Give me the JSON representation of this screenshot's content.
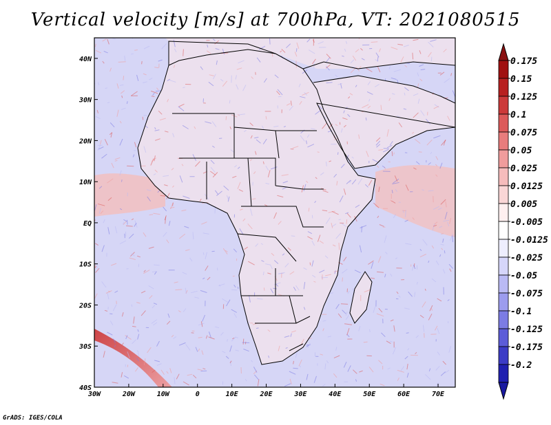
{
  "title": "Vertical velocity [m/s] at 700hPa, VT: 2021080515",
  "credit": "GrADS: IGES/COLA",
  "map": {
    "lon_range": [
      -30,
      75
    ],
    "lat_range": [
      -40,
      45
    ],
    "x_ticks": [
      {
        "lon": -30,
        "label": "30W"
      },
      {
        "lon": -20,
        "label": "20W"
      },
      {
        "lon": -10,
        "label": "10W"
      },
      {
        "lon": 0,
        "label": "0"
      },
      {
        "lon": 10,
        "label": "10E"
      },
      {
        "lon": 20,
        "label": "20E"
      },
      {
        "lon": 30,
        "label": "30E"
      },
      {
        "lon": 40,
        "label": "40E"
      },
      {
        "lon": 50,
        "label": "50E"
      },
      {
        "lon": 60,
        "label": "60E"
      },
      {
        "lon": 70,
        "label": "70E"
      }
    ],
    "y_ticks": [
      {
        "lat": 40,
        "label": "40N"
      },
      {
        "lat": 30,
        "label": "30N"
      },
      {
        "lat": 20,
        "label": "20N"
      },
      {
        "lat": 10,
        "label": "10N"
      },
      {
        "lat": 0,
        "label": "EQ"
      },
      {
        "lat": -10,
        "label": "10S"
      },
      {
        "lat": -20,
        "label": "20S"
      },
      {
        "lat": -30,
        "label": "30S"
      },
      {
        "lat": -40,
        "label": "40S"
      }
    ],
    "field_colors": {
      "ocean": "#d6d6f6",
      "ascent_band": "#f2c0c0",
      "land": "#ece0ee",
      "border": "#000000"
    }
  },
  "colorbar": {
    "levels": [
      {
        "label": "0.175",
        "color": "#a01010"
      },
      {
        "label": "0.15",
        "color": "#b82020"
      },
      {
        "label": "0.125",
        "color": "#cc3a3a"
      },
      {
        "label": "0.1",
        "color": "#dc5a5a"
      },
      {
        "label": "0.075",
        "color": "#e87c7c"
      },
      {
        "label": "0.05",
        "color": "#f09c9c"
      },
      {
        "label": "0.025",
        "color": "#f6bcbc"
      },
      {
        "label": "0.0125",
        "color": "#fad6d6"
      },
      {
        "label": "0.005",
        "color": "#fff0f0"
      },
      {
        "label": "-0.005",
        "color": "#ffffff"
      },
      {
        "label": "-0.0125",
        "color": "#eeeefe"
      },
      {
        "label": "-0.025",
        "color": "#d6d6fa"
      },
      {
        "label": "-0.05",
        "color": "#babaf4"
      },
      {
        "label": "-0.075",
        "color": "#9c9cee"
      },
      {
        "label": "-0.1",
        "color": "#7c7ce4"
      },
      {
        "label": "-0.125",
        "color": "#5c5cd8"
      },
      {
        "label": "-0.175",
        "color": "#3c3cc6"
      },
      {
        "label": "-0.2",
        "color": "#2020b0"
      }
    ],
    "overflow_color": "#8a1010",
    "underflow_color": "#1a1aa0"
  }
}
